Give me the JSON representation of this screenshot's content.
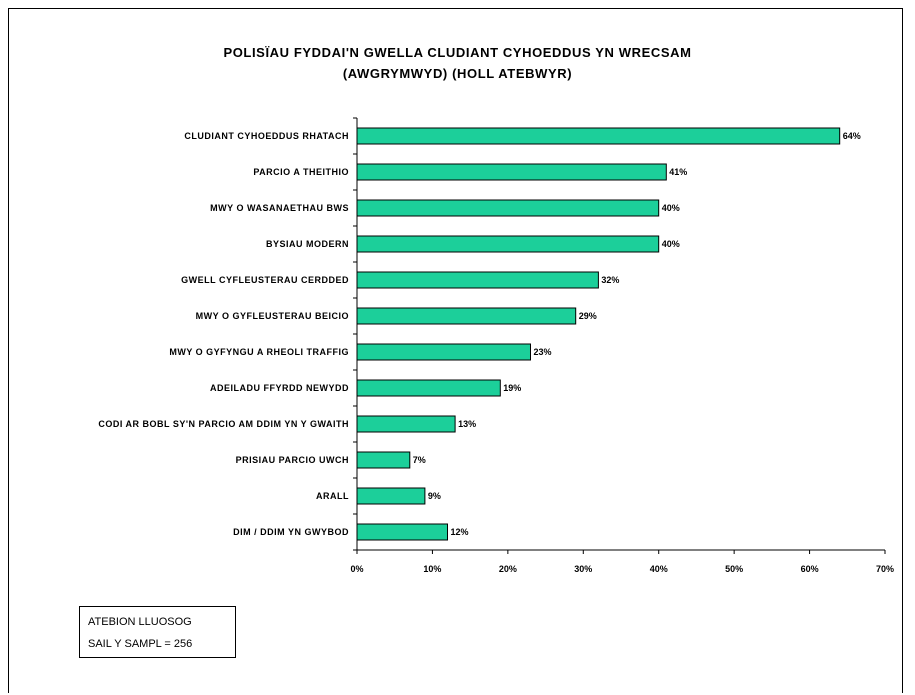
{
  "chart_data": {
    "type": "bar",
    "orientation": "horizontal",
    "title_lines": [
      "POLISÏAU FYDDAI'N GWELLA CLUDIANT CYHOEDDUS YN WRECSAM",
      "(AWGRYMWYD) (HOLL ATEBWYR)"
    ],
    "categories": [
      "CLUDIANT CYHOEDDUS RHATACH",
      "PARCIO A THEITHIO",
      "MWY O WASANAETHAU BWS",
      "BYSIAU MODERN",
      "GWELL CYFLEUSTERAU CERDDED",
      "MWY O GYFLEUSTERAU BEICIO",
      "MWY O GYFYNGU A RHEOLI TRAFFIG",
      "ADEILADU FFYRDD NEWYDD",
      "CODI AR BOBL SY'N PARCIO AM DDIM YN Y GWAITH",
      "PRISIAU PARCIO UWCH",
      "ARALL",
      "DIM / DDIM YN GWYBOD"
    ],
    "values": [
      64,
      41,
      40,
      40,
      32,
      29,
      23,
      19,
      13,
      7,
      9,
      12
    ],
    "value_labels": [
      "64%",
      "41%",
      "40%",
      "40%",
      "32%",
      "29%",
      "23%",
      "19%",
      "13%",
      "7%",
      "9%",
      "12%"
    ],
    "xlim": [
      0,
      70
    ],
    "x_ticks": [
      0,
      10,
      20,
      30,
      40,
      50,
      60,
      70
    ],
    "x_tick_labels": [
      "0%",
      "10%",
      "20%",
      "30%",
      "40%",
      "50%",
      "60%",
      "70%"
    ],
    "bar_color": "#1ccf9a",
    "grid": false,
    "legend": "none"
  },
  "note": {
    "line1": "ATEBION LLUOSOG",
    "line2": "SAIL Y SAMPL = 256"
  }
}
